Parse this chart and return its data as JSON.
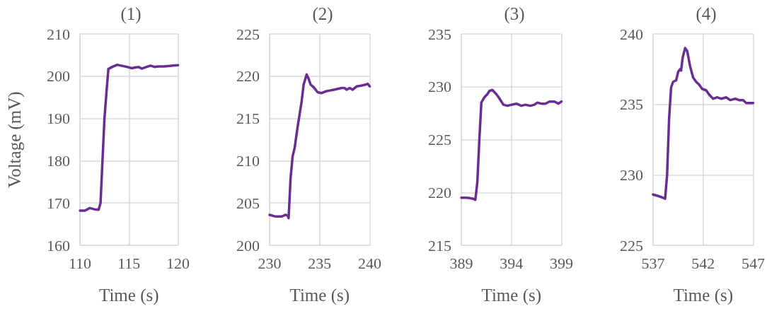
{
  "chart_data": [
    {
      "type": "line",
      "title": "(1)",
      "xlabel": "Time (s)",
      "ylabel": "Voltage (mV)",
      "xlim": [
        110,
        120
      ],
      "xticks": [
        110,
        115,
        120
      ],
      "ylim": [
        160,
        210
      ],
      "yticks": [
        160,
        170,
        180,
        190,
        200,
        210
      ],
      "grid": true,
      "marker": "none",
      "series": [
        {
          "color": "#6a2d91",
          "x": [
            110,
            110.5,
            111,
            111.5,
            111.9,
            112.1,
            112.3,
            112.5,
            112.7,
            112.9,
            113.3,
            113.8,
            114.2,
            114.8,
            115.3,
            115.7,
            116,
            116.3,
            116.8,
            117.2,
            117.6,
            118,
            118.5,
            119,
            119.5,
            120
          ],
          "values": [
            168.2,
            168.2,
            168.8,
            168.5,
            168.4,
            170,
            180,
            190,
            196,
            201.7,
            202.2,
            202.7,
            202.5,
            202.2,
            201.9,
            202.1,
            202.2,
            201.8,
            202.2,
            202.5,
            202.2,
            202.3,
            202.3,
            202.4,
            202.5,
            202.6
          ]
        }
      ]
    },
    {
      "type": "line",
      "title": "(2)",
      "xlabel": "Time (s)",
      "xlim": [
        230,
        240
      ],
      "xticks": [
        230,
        235,
        240
      ],
      "ylim": [
        200,
        225
      ],
      "yticks": [
        200,
        205,
        210,
        215,
        220,
        225
      ],
      "grid": true,
      "marker": "none",
      "series": [
        {
          "color": "#6a2d91",
          "x": [
            230,
            230.6,
            231.2,
            231.6,
            231.8,
            231.9,
            232.1,
            232.3,
            232.5,
            232.8,
            233.2,
            233.4,
            233.7,
            233.9,
            234.1,
            234.4,
            234.8,
            235.2,
            235.6,
            236,
            236.4,
            236.8,
            237.2,
            237.5,
            237.7,
            238,
            238.3,
            238.7,
            239.2,
            239.6,
            239.8,
            240
          ],
          "values": [
            203.6,
            203.4,
            203.4,
            203.6,
            203.5,
            203.2,
            208,
            210.5,
            211.5,
            214,
            217,
            219,
            220.2,
            219.7,
            219,
            218.7,
            218.1,
            218,
            218.2,
            218.3,
            218.4,
            218.5,
            218.6,
            218.6,
            218.4,
            218.6,
            218.4,
            218.8,
            218.9,
            219,
            219.1,
            218.8
          ]
        }
      ]
    },
    {
      "type": "line",
      "title": "(3)",
      "xlabel": "Time (s)",
      "xlim": [
        389,
        399
      ],
      "xticks": [
        389,
        394,
        399
      ],
      "ylim": [
        215,
        235
      ],
      "yticks": [
        215,
        220,
        225,
        230,
        235
      ],
      "grid": true,
      "marker": "none",
      "series": [
        {
          "color": "#6a2d91",
          "x": [
            389,
            389.6,
            390.2,
            390.4,
            390.6,
            390.8,
            391,
            391.3,
            391.6,
            391.8,
            392.1,
            392.5,
            392.8,
            393.2,
            393.6,
            394,
            394.5,
            395,
            395.4,
            395.9,
            396.3,
            396.6,
            397,
            397.4,
            397.8,
            398.3,
            398.7,
            399
          ],
          "values": [
            219.5,
            219.5,
            219.4,
            219.3,
            221,
            225,
            228.5,
            229,
            229.3,
            229.6,
            229.7,
            229.3,
            228.9,
            228.3,
            228.2,
            228.3,
            228.4,
            228.2,
            228.3,
            228.2,
            228.3,
            228.5,
            228.4,
            228.4,
            228.6,
            228.6,
            228.4,
            228.6
          ]
        }
      ]
    },
    {
      "type": "line",
      "title": "(4)",
      "xlabel": "Time (s)",
      "xlim": [
        537,
        547
      ],
      "xticks": [
        537,
        542,
        547
      ],
      "ylim": [
        225,
        240
      ],
      "yticks": [
        225,
        230,
        235,
        240
      ],
      "grid": true,
      "marker": "none",
      "series": [
        {
          "color": "#6a2d91",
          "x": [
            537,
            537.5,
            537.9,
            538.2,
            538.4,
            538.6,
            538.8,
            539,
            539.3,
            539.5,
            539.7,
            539.8,
            539.95,
            540.2,
            540.4,
            540.7,
            541,
            541.3,
            541.6,
            541.9,
            542.3,
            542.6,
            543,
            543.4,
            543.8,
            544.3,
            544.7,
            545.2,
            545.6,
            546,
            546.3,
            546.7,
            547
          ],
          "values": [
            228.6,
            228.5,
            228.4,
            228.3,
            230,
            234,
            236.2,
            236.6,
            236.7,
            237.3,
            237.5,
            237.4,
            238.3,
            239,
            238.8,
            237.7,
            236.9,
            236.6,
            236.4,
            236.1,
            236,
            235.7,
            235.4,
            235.5,
            235.4,
            235.5,
            235.3,
            235.4,
            235.3,
            235.3,
            235.1,
            235.1,
            235.1
          ]
        }
      ]
    }
  ]
}
